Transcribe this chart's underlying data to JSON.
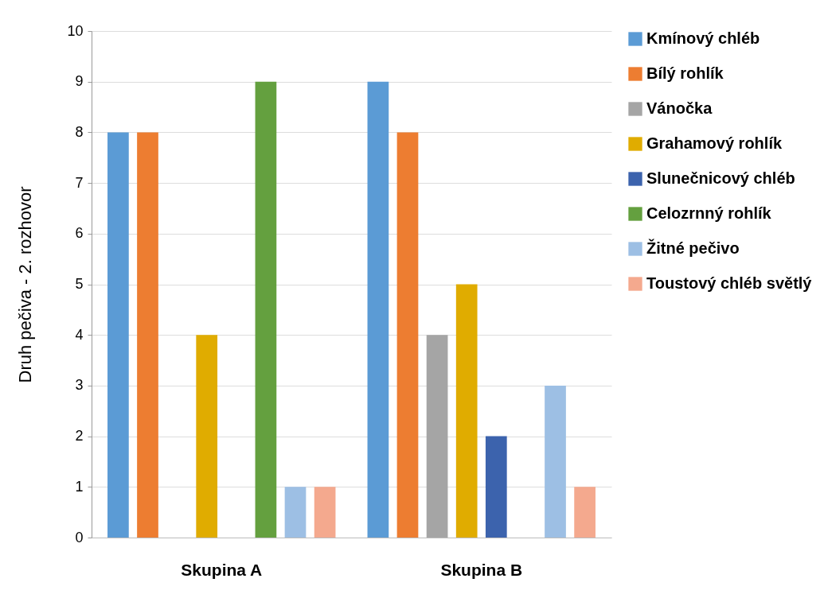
{
  "chart_data": {
    "type": "bar",
    "ylabel": "Druh pečiva - 2. rozhovor",
    "categories": [
      "Skupina A",
      "Skupina B"
    ],
    "ylim": [
      0,
      10
    ],
    "yticks": [
      0,
      1,
      2,
      3,
      4,
      5,
      6,
      7,
      8,
      9,
      10
    ],
    "grid": "y",
    "legend": "right",
    "series": [
      {
        "name": "Kmínový chléb",
        "color": "#5b9bd5",
        "values": [
          8,
          9
        ]
      },
      {
        "name": "Bílý rohlík",
        "color": "#ed7d31",
        "values": [
          8,
          8
        ]
      },
      {
        "name": "Vánočka",
        "color": "#a5a5a5",
        "values": [
          0,
          4
        ]
      },
      {
        "name": "Grahamový rohlík",
        "color": "#e0ac00",
        "values": [
          4,
          5
        ]
      },
      {
        "name": "Slunečnicový chléb",
        "color": "#3c63ad",
        "values": [
          0,
          2
        ]
      },
      {
        "name": "Celozrnný rohlík",
        "color": "#64a03f",
        "values": [
          9,
          0
        ]
      },
      {
        "name": "Žitné pečivo",
        "color": "#9dbfe4",
        "values": [
          1,
          3
        ]
      },
      {
        "name": "Toustový chléb světlý",
        "color": "#f4a98e",
        "values": [
          1,
          1
        ]
      }
    ]
  }
}
